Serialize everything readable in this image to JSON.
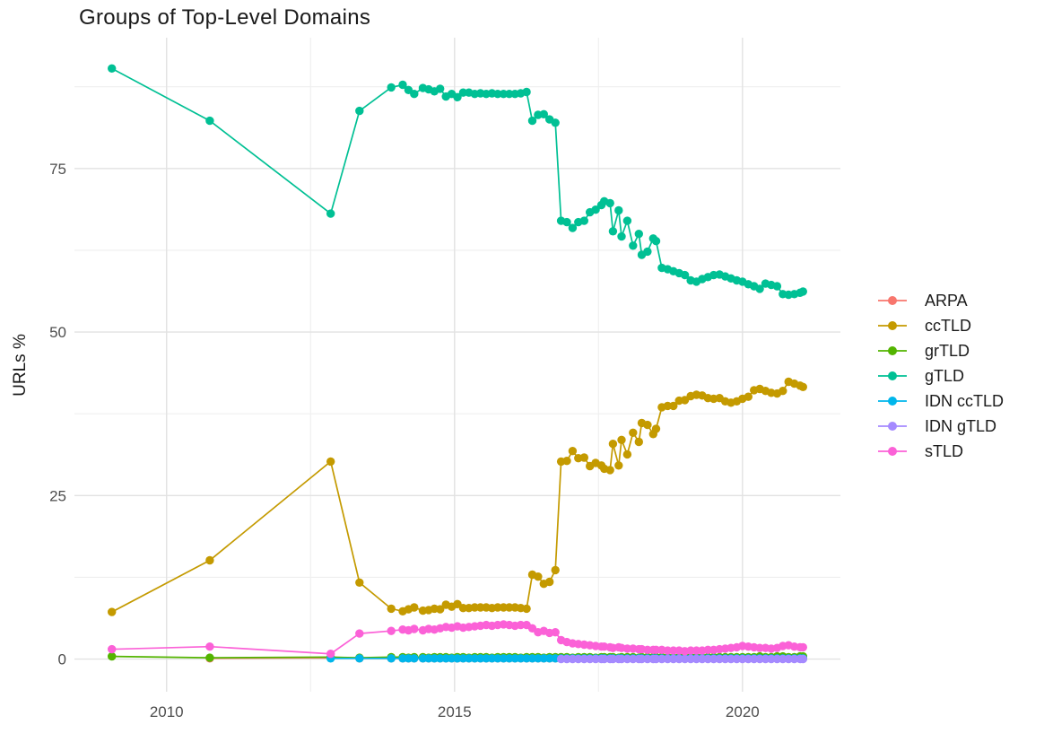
{
  "page": {
    "background": "#ffffff"
  },
  "chart_data": {
    "type": "line",
    "title": "Groups of Top-Level Domains",
    "xlabel": "",
    "ylabel": "URLs %",
    "grid": "on",
    "legend_position": "right",
    "x_ticks": [
      "2010",
      "2015",
      "2020"
    ],
    "x_tick_values": [
      2010,
      2015,
      2020
    ],
    "x_minor_ticks": [
      2012.5,
      2017.5
    ],
    "y_ticks": [
      "0",
      "25",
      "50",
      "75"
    ],
    "y_tick_values": [
      0,
      25,
      50,
      75
    ],
    "y_minor_ticks": [
      12.5,
      37.5,
      62.5,
      87.5
    ],
    "xlim": [
      2008.4,
      2021.7
    ],
    "ylim": [
      -5,
      95
    ],
    "x": [
      2009.05,
      2010.75,
      2012.85,
      2013.35,
      2013.9,
      2014.1,
      2014.2,
      2014.3,
      2014.45,
      2014.55,
      2014.65,
      2014.75,
      2014.85,
      2014.95,
      2015.05,
      2015.15,
      2015.25,
      2015.35,
      2015.45,
      2015.55,
      2015.65,
      2015.75,
      2015.85,
      2015.95,
      2016.05,
      2016.15,
      2016.25,
      2016.35,
      2016.45,
      2016.55,
      2016.65,
      2016.75,
      2016.85,
      2016.95,
      2017.05,
      2017.15,
      2017.25,
      2017.35,
      2017.45,
      2017.55,
      2017.6,
      2017.7,
      2017.75,
      2017.85,
      2017.9,
      2018.0,
      2018.1,
      2018.2,
      2018.25,
      2018.35,
      2018.45,
      2018.5,
      2018.6,
      2018.7,
      2018.8,
      2018.9,
      2019.0,
      2019.1,
      2019.2,
      2019.3,
      2019.4,
      2019.5,
      2019.6,
      2019.7,
      2019.8,
      2019.9,
      2020.0,
      2020.1,
      2020.2,
      2020.3,
      2020.4,
      2020.5,
      2020.6,
      2020.7,
      2020.8,
      2020.9,
      2021.0,
      2021.05
    ],
    "series": [
      {
        "name": "ARPA",
        "color": "#F8766D",
        "values": [
          null,
          0.1,
          0.2,
          0.1,
          0.1,
          0.1,
          0.1,
          0.1,
          0.1,
          0.1,
          0.1,
          0.1,
          0.1,
          0.1,
          0.1,
          0.1,
          0.1,
          0.1,
          0.1,
          0.1,
          0.1,
          0.1,
          0.1,
          0.1,
          0.1,
          0.1,
          0.1,
          0.1,
          0.1,
          0.1,
          0.1,
          0.1,
          0.1,
          0.1,
          0.1,
          0.1,
          0.1,
          0.1,
          0.1,
          0.1,
          0.1,
          0.1,
          0.1,
          0.1,
          0.1,
          0.1,
          0.1,
          0.1,
          0.1,
          0.1,
          0.1,
          0.1,
          0.1,
          0.1,
          0.1,
          0.1,
          0.1,
          0.1,
          0.1,
          0.1,
          0.1,
          0.1,
          0.1,
          0.1,
          0.1,
          0.1,
          0.1,
          0.1,
          0.1,
          0.1,
          0.1,
          0.1,
          0.1,
          0.1,
          0.1,
          0.1,
          0.1,
          0.1
        ]
      },
      {
        "name": "ccTLD",
        "color": "#C49A00",
        "values": [
          7.2,
          15.1,
          30.2,
          11.7,
          7.7,
          7.3,
          7.6,
          7.9,
          7.4,
          7.5,
          7.7,
          7.6,
          8.3,
          8.0,
          8.4,
          7.8,
          7.8,
          7.9,
          7.9,
          7.9,
          7.8,
          7.9,
          7.9,
          7.9,
          7.9,
          7.8,
          7.7,
          12.9,
          12.6,
          11.5,
          11.8,
          13.6,
          30.2,
          30.3,
          31.8,
          30.7,
          30.8,
          29.5,
          30.0,
          29.6,
          29.1,
          28.9,
          32.9,
          29.6,
          33.5,
          31.3,
          34.6,
          33.2,
          36.1,
          35.8,
          34.4,
          35.2,
          38.5,
          38.7,
          38.7,
          39.5,
          39.6,
          40.2,
          40.4,
          40.3,
          39.9,
          39.8,
          39.9,
          39.4,
          39.2,
          39.4,
          39.8,
          40.1,
          41.1,
          41.3,
          41.0,
          40.7,
          40.6,
          41.0,
          42.4,
          42.1,
          41.8,
          41.6
        ]
      },
      {
        "name": "grTLD",
        "color": "#53B400",
        "values": [
          0.4,
          0.2,
          0.3,
          0.2,
          0.3,
          0.3,
          0.2,
          0.3,
          0.3,
          0.2,
          0.3,
          0.3,
          0.3,
          0.2,
          0.3,
          0.3,
          0.2,
          0.3,
          0.3,
          0.3,
          0.2,
          0.3,
          0.3,
          0.3,
          0.3,
          0.2,
          0.3,
          0.3,
          0.3,
          0.2,
          0.3,
          0.3,
          0.3,
          0.3,
          0.2,
          0.3,
          0.3,
          0.3,
          0.2,
          0.3,
          0.3,
          0.3,
          0.3,
          0.2,
          0.3,
          0.3,
          0.3,
          0.2,
          0.3,
          0.3,
          0.3,
          0.3,
          0.3,
          0.3,
          0.2,
          0.3,
          0.3,
          0.3,
          0.3,
          0.2,
          0.3,
          0.3,
          0.3,
          0.3,
          0.3,
          0.3,
          0.3,
          0.3,
          0.3,
          0.4,
          0.3,
          0.3,
          0.4,
          0.4,
          0.3,
          0.3,
          0.4,
          0.4
        ]
      },
      {
        "name": "gTLD",
        "color": "#00C094",
        "values": [
          90.3,
          82.3,
          68.1,
          83.8,
          87.4,
          87.8,
          87.0,
          86.4,
          87.3,
          87.1,
          86.8,
          87.2,
          86.0,
          86.4,
          85.9,
          86.6,
          86.6,
          86.4,
          86.5,
          86.4,
          86.5,
          86.4,
          86.4,
          86.4,
          86.4,
          86.5,
          86.7,
          82.3,
          83.2,
          83.3,
          82.5,
          82.0,
          67.0,
          66.8,
          65.9,
          66.8,
          67.0,
          68.3,
          68.7,
          69.4,
          70.0,
          69.7,
          65.4,
          68.6,
          64.6,
          67.0,
          63.2,
          65.0,
          61.8,
          62.3,
          64.3,
          63.9,
          59.8,
          59.6,
          59.3,
          59.0,
          58.7,
          57.9,
          57.7,
          58.1,
          58.4,
          58.7,
          58.8,
          58.5,
          58.2,
          57.9,
          57.7,
          57.3,
          57.0,
          56.6,
          57.4,
          57.2,
          57.0,
          55.8,
          55.7,
          55.8,
          56.0,
          56.2
        ]
      },
      {
        "name": "IDN ccTLD",
        "color": "#00B6EB",
        "values": [
          null,
          null,
          0.1,
          0.1,
          0.1,
          0.1,
          0.1,
          0.1,
          0.1,
          0.1,
          0.1,
          0.1,
          0.1,
          0.1,
          0.1,
          0.1,
          0.1,
          0.1,
          0.1,
          0.1,
          0.1,
          0.1,
          0.1,
          0.1,
          0.1,
          0.1,
          0.1,
          0.1,
          0.1,
          0.1,
          0.1,
          0.1,
          0.1,
          0.1,
          0.1,
          0.1,
          0.1,
          0.1,
          0.1,
          0.1,
          0.1,
          0.1,
          0.1,
          0.1,
          0.1,
          0.1,
          0.1,
          0.1,
          0.1,
          0.1,
          0.1,
          0.1,
          0.1,
          0.1,
          0.1,
          0.1,
          0.1,
          0.1,
          0.1,
          0.1,
          0.1,
          0.1,
          0.1,
          0.1,
          0.1,
          0.1,
          0.1,
          0.1,
          0.1,
          0.1,
          0.1,
          0.1,
          0.1,
          0.1,
          0.1,
          0.1,
          0.1,
          0.1
        ]
      },
      {
        "name": "IDN gTLD",
        "color": "#A58AFF",
        "values": [
          null,
          null,
          null,
          null,
          null,
          null,
          null,
          null,
          null,
          null,
          null,
          null,
          null,
          null,
          null,
          null,
          null,
          null,
          null,
          null,
          null,
          null,
          null,
          null,
          null,
          null,
          null,
          null,
          null,
          null,
          null,
          null,
          0.0,
          0.0,
          0.0,
          0.0,
          0.0,
          0.0,
          0.0,
          0.0,
          0.0,
          0.0,
          0.0,
          0.0,
          0.0,
          0.0,
          0.0,
          0.0,
          0.0,
          0.0,
          0.0,
          0.0,
          0.0,
          0.0,
          0.0,
          0.0,
          0.0,
          0.0,
          0.0,
          0.0,
          0.0,
          0.0,
          0.0,
          0.0,
          0.0,
          0.0,
          0.0,
          0.0,
          0.0,
          0.0,
          0.0,
          0.0,
          0.0,
          0.0,
          0.0,
          0.0,
          0.0,
          0.0
        ]
      },
      {
        "name": "sTLD",
        "color": "#FB61D7",
        "values": [
          1.5,
          1.9,
          0.8,
          3.9,
          4.3,
          4.5,
          4.4,
          4.6,
          4.4,
          4.6,
          4.5,
          4.7,
          4.9,
          4.8,
          5.0,
          4.8,
          4.9,
          5.0,
          5.1,
          5.2,
          5.1,
          5.2,
          5.3,
          5.2,
          5.1,
          5.2,
          5.2,
          4.7,
          4.1,
          4.3,
          4.0,
          4.1,
          2.9,
          2.6,
          2.4,
          2.3,
          2.2,
          2.1,
          2.0,
          1.9,
          1.9,
          1.8,
          1.7,
          1.8,
          1.7,
          1.6,
          1.6,
          1.5,
          1.5,
          1.4,
          1.4,
          1.4,
          1.4,
          1.3,
          1.3,
          1.3,
          1.2,
          1.3,
          1.3,
          1.3,
          1.4,
          1.4,
          1.5,
          1.6,
          1.7,
          1.8,
          2.0,
          1.9,
          1.8,
          1.7,
          1.7,
          1.6,
          1.7,
          2.0,
          2.1,
          1.9,
          1.8,
          1.8
        ]
      }
    ],
    "style": {
      "grid_major_color": "#E2E2E2",
      "grid_minor_color": "#EFEFEF",
      "tick_label_color": "#4D4D4D",
      "point_radius": 4.7,
      "line_width": 1.7
    }
  }
}
